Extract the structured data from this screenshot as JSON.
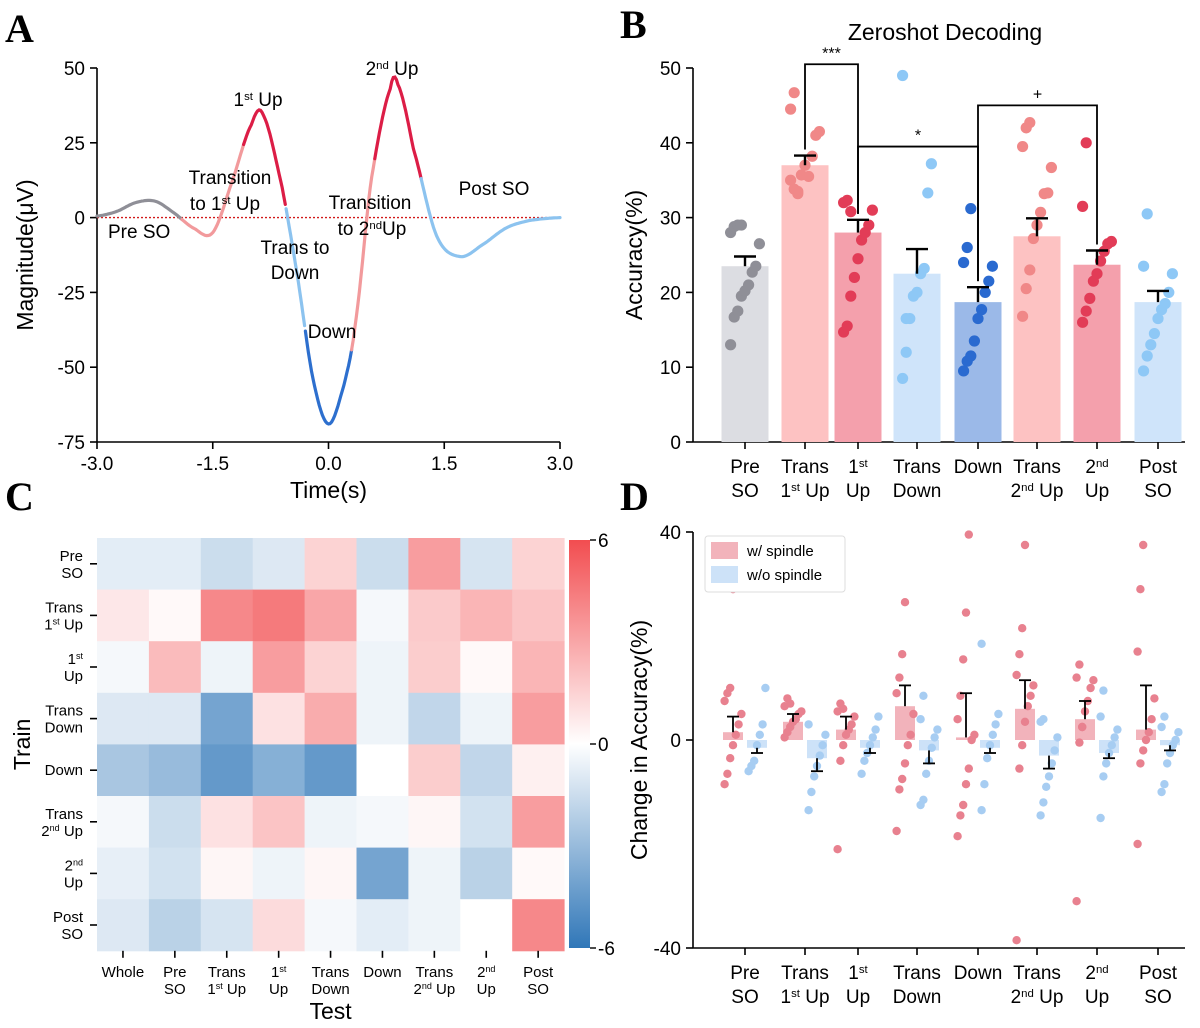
{
  "colors": {
    "gray": "#8f8f97",
    "grayBar": "#dcdde2",
    "pinkLight": "#f29a9c",
    "pinkBar": "#fdc2c2",
    "pinkDot": "#f08888",
    "red": "#dc1d46",
    "redBar": "#f4a0ac",
    "redDot": "#e23c57",
    "blueLight": "#8cc3ef",
    "blueBar": "#cfe4fa",
    "blueDot": "#8ec8f6",
    "blueDark": "#2d6fce",
    "blueDarkBar": "#9bb9e8",
    "blueDarkDot": "#2a6ad0",
    "baseline": "#d11a1a",
    "spindle": "#f2b3bb",
    "spindleDot": "#e8818f",
    "noSpindle": "#cde2f8",
    "noSpindleDot": "#a7cdf2"
  },
  "panels": {
    "a": "A",
    "b": "B",
    "c": "C",
    "d": "D"
  },
  "chart_data": [
    {
      "panel": "A",
      "type": "line",
      "xlabel": "Time(s)",
      "ylabel": "Magnitude(μV)",
      "xlim": [
        -3.0,
        3.0
      ],
      "ylim": [
        -75,
        50
      ],
      "xticks": [
        "-3.0",
        "-1.5",
        "0.0",
        "1.5",
        "3.0"
      ],
      "yticks": [
        "50",
        "25",
        "0",
        "-25",
        "-50",
        "-75"
      ],
      "baseline": 0,
      "series_x": [
        -3.0,
        -2.75,
        -2.5,
        -2.25,
        -2.0,
        -1.75,
        -1.5,
        -1.25,
        -1.0,
        -0.85,
        -0.6,
        -0.4,
        -0.2,
        0.0,
        0.2,
        0.35,
        0.55,
        0.8,
        0.9,
        1.1,
        1.4,
        1.7,
        2.0,
        2.3,
        2.6,
        3.0
      ],
      "series_y": [
        0.5,
        2.0,
        5.0,
        5.5,
        1.5,
        -3.5,
        -5.0,
        12.0,
        31.0,
        34.5,
        10.0,
        -20.0,
        -54.0,
        -69.0,
        -56.0,
        -35.0,
        12.0,
        43.0,
        44.5,
        23.0,
        -6.0,
        -13.0,
        -9.0,
        -3.5,
        -1.0,
        0.0
      ],
      "segments": [
        {
          "phase": "Pre SO",
          "x": [
            -3.0,
            -1.9
          ]
        },
        {
          "phase": "Transition to 1st Up",
          "x": [
            -1.9,
            -1.1
          ]
        },
        {
          "phase": "1st Up",
          "x": [
            -1.1,
            -0.55
          ]
        },
        {
          "phase": "Trans to Down",
          "x": [
            -0.55,
            -0.3
          ]
        },
        {
          "phase": "Down",
          "x": [
            -0.3,
            0.3
          ]
        },
        {
          "phase": "Transition to 2nd Up",
          "x": [
            0.3,
            0.6
          ]
        },
        {
          "phase": "2nd Up",
          "x": [
            0.6,
            1.2
          ]
        },
        {
          "phase": "Post SO",
          "x": [
            1.2,
            3.0
          ]
        }
      ],
      "annotations": {
        "pre": "Pre SO",
        "trans1a": "Transition",
        "trans1b": "to 1",
        "trans1sup": "st",
        "trans1c": " Up",
        "up1": "1",
        "up1sup": "st",
        "up1b": " Up",
        "transdownA": "Trans to",
        "transdownB": "Down",
        "down": "Down",
        "trans2a": "Transition",
        "trans2b": "to 2",
        "trans2sup": "nd",
        "trans2c": "Up",
        "up2": "2",
        "up2sup": "nd",
        "up2b": " Up",
        "post": "Post SO"
      }
    },
    {
      "panel": "B",
      "type": "bar",
      "title": "Zeroshot Decoding",
      "ylabel": "Accuracy(%)",
      "ylim": [
        0,
        50
      ],
      "yticks": [
        "0",
        "10",
        "20",
        "30",
        "40",
        "50"
      ],
      "categories": [
        {
          "l1": "Pre",
          "l2": "SO",
          "sup": "",
          "l2b": ""
        },
        {
          "l1": "Trans",
          "l2": "1",
          "sup": "st",
          "l2b": " Up"
        },
        {
          "l1": "1",
          "l1sup": "st",
          "l2": "Up",
          "sup": "",
          "l2b": ""
        },
        {
          "l1": "Trans",
          "l2": "Down",
          "sup": "",
          "l2b": ""
        },
        {
          "l1": "Down",
          "l2": "",
          "sup": "",
          "l2b": ""
        },
        {
          "l1": "Trans",
          "l2": "2",
          "sup": "nd",
          "l2b": " Up"
        },
        {
          "l1": "2",
          "l1sup": "nd",
          "l2": "Up",
          "sup": "",
          "l2b": ""
        },
        {
          "l1": "Post",
          "l2": "SO",
          "sup": "",
          "l2b": ""
        }
      ],
      "values": [
        23.5,
        37.0,
        28.0,
        22.5,
        18.7,
        27.5,
        23.7,
        18.7
      ],
      "errors": [
        1.3,
        1.3,
        1.7,
        3.3,
        2.0,
        2.4,
        1.9,
        1.5
      ],
      "points": [
        [
          13.0,
          16.7,
          17.5,
          19.5,
          20.2,
          21.0,
          22.7,
          23.5,
          26.5,
          28.0,
          28.8,
          29.0,
          29.0
        ],
        [
          35.0,
          33.8,
          33.5,
          35.7,
          37.0,
          35.5,
          38.2,
          41.0,
          41.5,
          44.5,
          46.7,
          33.2
        ],
        [
          14.7,
          15.5,
          19.5,
          22.0,
          24.5,
          27.0,
          28.0,
          29.0,
          31.0,
          32.0,
          32.3,
          30.8
        ],
        [
          8.5,
          12.0,
          16.5,
          19.5,
          20.0,
          22.5,
          23.2,
          33.3,
          37.2,
          49.0,
          16.5
        ],
        [
          9.5,
          10.8,
          11.5,
          13.5,
          16.5,
          17.7,
          20.0,
          21.5,
          23.5,
          24.0,
          26.0,
          31.2
        ],
        [
          16.8,
          20.5,
          23.0,
          27.2,
          29.0,
          30.7,
          33.2,
          33.3,
          36.7,
          39.5,
          42.0,
          42.7
        ],
        [
          16.0,
          17.5,
          19.2,
          21.5,
          22.5,
          24.2,
          25.5,
          26.5,
          26.8,
          31.5,
          40.0
        ],
        [
          9.5,
          11.5,
          13.0,
          14.5,
          16.5,
          17.7,
          18.5,
          20.0,
          22.5,
          23.5,
          30.5
        ]
      ],
      "pointColors": [
        "gray",
        "pinkDot",
        "redDot",
        "blueDot",
        "blueDarkDot",
        "pinkDot",
        "redDot",
        "blueDot"
      ],
      "barColors": [
        "grayBar",
        "pinkBar",
        "redBar",
        "blueBar",
        "blueDarkBar",
        "pinkBar",
        "redBar",
        "blueBar"
      ],
      "significance": [
        {
          "from": 1,
          "to": 2,
          "y": 50.5,
          "label": "***"
        },
        {
          "from": 2,
          "to": 4,
          "y": 39.5,
          "label": "*"
        },
        {
          "from": 4,
          "to": 6,
          "y": 45.0,
          "label": "+"
        }
      ]
    },
    {
      "panel": "C",
      "type": "heatmap",
      "xlabel": "Test",
      "ylabel": "Train",
      "colorbar": {
        "min": -6,
        "max": 6,
        "ticks": [
          "6",
          "0",
          "-6"
        ]
      },
      "x_categories": [
        {
          "l1": "Whole",
          "l2": ""
        },
        {
          "l1": "Pre",
          "l2": "SO"
        },
        {
          "l1": "Trans",
          "l2": "1",
          "sup": "st",
          "l2b": " Up"
        },
        {
          "l1": "1",
          "l1sup": "st",
          "l2": "Up"
        },
        {
          "l1": "Trans",
          "l2": "Down"
        },
        {
          "l1": "Down",
          "l2": ""
        },
        {
          "l1": "Trans",
          "l2": "2",
          "sup": "nd",
          "l2b": " Up"
        },
        {
          "l1": "2",
          "l1sup": "nd",
          "l2": "Up"
        },
        {
          "l1": "Post",
          "l2": "SO"
        }
      ],
      "y_categories": [
        {
          "l1": "Pre",
          "l2": "SO"
        },
        {
          "l1": "Trans",
          "l2": "1",
          "sup": "st",
          "l2b": " Up"
        },
        {
          "l1": "1",
          "l1sup": "st",
          "l2": "Up"
        },
        {
          "l1": "Trans",
          "l2": "Down"
        },
        {
          "l1": "Down",
          "l2": ""
        },
        {
          "l1": "Trans",
          "l2": "2",
          "sup": "nd",
          "l2b": " Up"
        },
        {
          "l1": "2",
          "l1sup": "nd",
          "l2": "Up"
        },
        {
          "l1": "Post",
          "l2": "SO"
        }
      ],
      "values": [
        [
          -0.8,
          -0.8,
          -1.5,
          -1.0,
          1.5,
          -1.5,
          3.3,
          -1.2,
          1.5
        ],
        [
          0.8,
          0.2,
          4.0,
          4.5,
          3.0,
          -0.3,
          1.8,
          2.5,
          2.0
        ],
        [
          -0.3,
          2.3,
          -0.5,
          3.3,
          1.5,
          -0.5,
          1.7,
          0.2,
          2.5
        ],
        [
          -1.0,
          -1.0,
          -4.0,
          1.0,
          2.8,
          -0.5,
          -1.8,
          -0.5,
          3.3
        ],
        [
          -2.5,
          -3.0,
          -4.5,
          -3.5,
          -4.5,
          0.0,
          1.7,
          -1.8,
          0.5
        ],
        [
          -0.3,
          -1.5,
          1.0,
          2.0,
          -0.5,
          -0.3,
          0.3,
          -1.3,
          3.3
        ],
        [
          -0.7,
          -1.3,
          0.3,
          -0.5,
          0.3,
          -4.0,
          -0.5,
          -2.0,
          0.2
        ],
        [
          -1.0,
          -2.0,
          -1.2,
          1.2,
          -0.3,
          -0.8,
          -0.5,
          0.0,
          4.0
        ]
      ]
    },
    {
      "panel": "D",
      "type": "bar",
      "ylabel": "Change in Accuracy(%)",
      "ylim": [
        -40,
        40
      ],
      "yticks": [
        "40",
        "0",
        "-40"
      ],
      "legend": {
        "position": "top-left",
        "items": [
          "w/ spindle",
          "w/o spindle"
        ]
      },
      "categories": [
        {
          "l1": "Pre",
          "l2": "SO"
        },
        {
          "l1": "Trans",
          "l2": "1",
          "sup": "st",
          "l2b": " Up"
        },
        {
          "l1": "1",
          "l1sup": "st",
          "l2": "Up"
        },
        {
          "l1": "Trans",
          "l2": "Down"
        },
        {
          "l1": "Down",
          "l2": ""
        },
        {
          "l1": "Trans",
          "l2": "2",
          "sup": "nd",
          "l2b": " Up"
        },
        {
          "l1": "2",
          "l1sup": "nd",
          "l2": "Up"
        },
        {
          "l1": "Post",
          "l2": "SO"
        }
      ],
      "series": [
        {
          "name": "w/ spindle",
          "values": [
            1.5,
            3.5,
            2.0,
            6.5,
            0.5,
            6.0,
            4.0,
            2.0
          ],
          "errors": [
            3.0,
            1.5,
            2.5,
            4.0,
            8.5,
            5.5,
            3.5,
            8.5
          ],
          "points": [
            [
              -8.5,
              -6.5,
              -3.5,
              -1.0,
              1.0,
              3.0,
              5.0,
              7.5,
              9.0,
              10.0,
              29.0
            ],
            [
              0.5,
              1.5,
              2.5,
              3.5,
              4.0,
              5.0,
              5.5,
              6.5,
              8.0,
              7.0
            ],
            [
              -21.0,
              -4.0,
              -1.0,
              1.0,
              2.0,
              3.0,
              4.5,
              5.5,
              7.0,
              6.0
            ],
            [
              -17.5,
              -9.5,
              -7.5,
              -4.5,
              -1.0,
              1.0,
              5.0,
              9.0,
              12.0,
              16.5,
              26.5
            ],
            [
              -18.5,
              -14.5,
              -12.5,
              -8.5,
              -5.5,
              0.0,
              1.0,
              4.0,
              8.5,
              15.5,
              24.5,
              39.5
            ],
            [
              -38.5,
              -5.5,
              -1.0,
              3.5,
              6.5,
              8.5,
              10.5,
              12.5,
              16.5,
              21.5,
              37.5
            ],
            [
              -31.0,
              -0.5,
              2.5,
              5.5,
              7.5,
              10.0,
              11.5,
              12.0,
              14.5,
              2.5
            ],
            [
              -20.0,
              -4.5,
              -2.0,
              0.0,
              1.5,
              4.0,
              8.0,
              17.0,
              29.0,
              37.5
            ]
          ]
        },
        {
          "name": "w/o spindle",
          "values": [
            -1.5,
            -3.5,
            -1.5,
            -2.0,
            -1.5,
            -3.0,
            -2.5,
            -1.0
          ],
          "errors": [
            1.0,
            2.5,
            1.0,
            2.5,
            1.0,
            2.5,
            1.0,
            1.0
          ],
          "points": [
            [
              -6.0,
              -5.0,
              -4.0,
              -1.0,
              1.0,
              3.0,
              10.0
            ],
            [
              -13.5,
              -10.0,
              -7.0,
              -5.0,
              -3.0,
              -1.0,
              1.0,
              3.0
            ],
            [
              -6.5,
              -4.0,
              -2.5,
              -1.0,
              0.5,
              2.0,
              4.5
            ],
            [
              -12.5,
              -11.5,
              -6.5,
              -4.0,
              -1.5,
              0.5,
              2.0,
              4.0,
              8.5
            ],
            [
              -13.5,
              -8.5,
              -3.5,
              -1.0,
              1.0,
              3.0,
              5.0,
              18.5
            ],
            [
              -14.5,
              -12.0,
              -9.0,
              -7.0,
              -4.5,
              -2.0,
              0.5,
              3.5,
              4.0
            ],
            [
              -15.0,
              -7.0,
              -4.5,
              -2.5,
              -1.0,
              0.5,
              2.0,
              4.5,
              9.5
            ],
            [
              -10.0,
              -8.5,
              -4.5,
              -2.5,
              -1.0,
              0.0,
              1.5,
              2.5,
              4.5
            ]
          ]
        }
      ]
    }
  ]
}
